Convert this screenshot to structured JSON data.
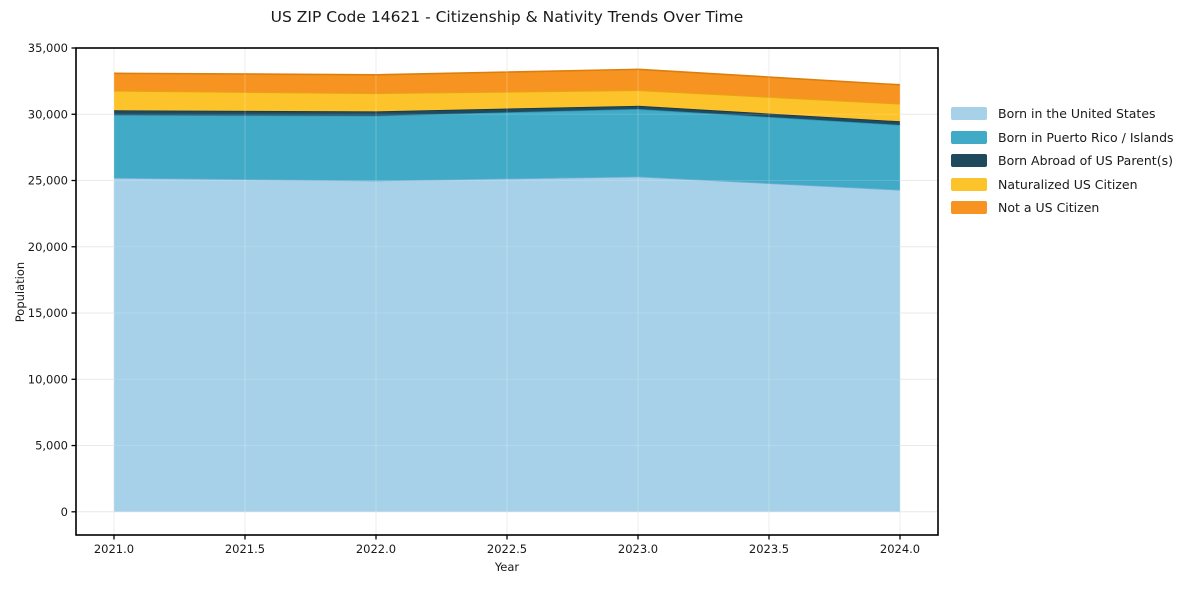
{
  "chart_data": {
    "type": "area",
    "stacked": true,
    "title": "US ZIP Code 14621 - Citizenship & Nativity Trends Over Time",
    "xlabel": "Year",
    "ylabel": "Population",
    "x": [
      2021,
      2022,
      2023,
      2024
    ],
    "series": [
      {
        "name": "Born in the United States",
        "color": "#a6d1e8",
        "edge": "#6fafd2",
        "values": [
          25200,
          25000,
          25300,
          24300
        ]
      },
      {
        "name": "Born in Puerto Rico / Islands",
        "color": "#41aac6",
        "edge": "#2b8fae",
        "values": [
          4750,
          4900,
          5100,
          4900
        ]
      },
      {
        "name": "Born Abroad of US Parent(s)",
        "color": "#1f4a5e",
        "edge": "#16374a",
        "values": [
          350,
          320,
          240,
          270
        ]
      },
      {
        "name": "Naturalized US Citizen",
        "color": "#fdc32b",
        "edge": "#e3a90f",
        "values": [
          1470,
          1360,
          1170,
          1320
        ]
      },
      {
        "name": "Not a US Citizen",
        "color": "#f79421",
        "edge": "#dd7e0c",
        "values": [
          1320,
          1400,
          1580,
          1430
        ]
      }
    ],
    "xlim": [
      2020.855,
      2024.145
    ],
    "ylim": [
      -1750,
      35000
    ],
    "xticks": {
      "values": [
        2021.0,
        2021.5,
        2022.0,
        2022.5,
        2023.0,
        2023.5,
        2024.0
      ],
      "labels": [
        "2021.0",
        "2021.5",
        "2022.0",
        "2022.5",
        "2023.0",
        "2023.5",
        "2024.0"
      ]
    },
    "yticks": {
      "values": [
        0,
        5000,
        10000,
        15000,
        20000,
        25000,
        30000,
        35000
      ],
      "labels": [
        "0",
        "5,000",
        "10,000",
        "15,000",
        "20,000",
        "25,000",
        "30,000",
        "35,000"
      ]
    },
    "grid": true,
    "gridcolor": "#e7e7e7",
    "frame_color": "#000000",
    "legend_position": "right-outside"
  }
}
